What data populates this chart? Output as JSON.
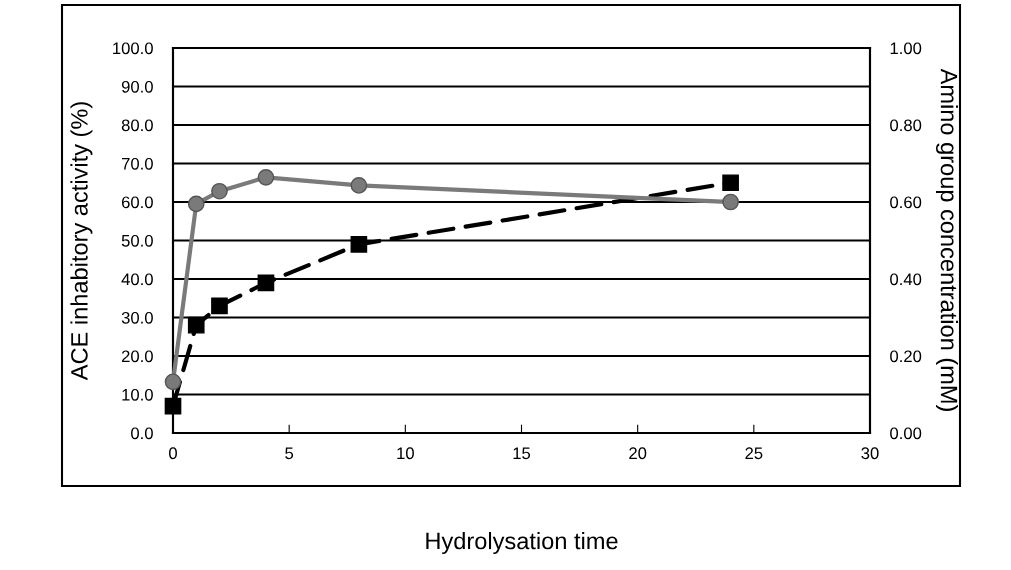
{
  "chart_data": {
    "type": "line",
    "xlabel": "Hydrolysation time",
    "ylabel": "ACE inhabitory activity (%)",
    "y2label": "Amino group concentration (mM)",
    "x": [
      0,
      1,
      2,
      4,
      8,
      24
    ],
    "series": [
      {
        "color": "#7a7a7a",
        "marker": "circle",
        "line_style": "solid",
        "values": [
          13.3,
          59.5,
          62.8,
          66.4,
          64.3,
          60.0
        ]
      },
      {
        "color": "#000000",
        "marker": "square",
        "line_style": "dashed",
        "axis": "y2",
        "values": [
          0.07,
          0.28,
          0.33,
          0.39,
          0.49,
          0.65
        ]
      }
    ],
    "xlim": [
      0,
      30
    ],
    "xticks": [
      0,
      5,
      10,
      15,
      20,
      25,
      30
    ],
    "ylim": [
      0,
      100
    ],
    "yticks": [
      {
        "value": 0,
        "label": "0.0"
      },
      {
        "value": 10,
        "label": "10.0"
      },
      {
        "value": 20,
        "label": "20.0"
      },
      {
        "value": 30,
        "label": "30.0"
      },
      {
        "value": 40,
        "label": "40.0"
      },
      {
        "value": 50,
        "label": "50.0"
      },
      {
        "value": 60,
        "label": "60.0"
      },
      {
        "value": 70,
        "label": "70.0"
      },
      {
        "value": 80,
        "label": "80.0"
      },
      {
        "value": 90,
        "label": "90.0"
      },
      {
        "value": 100,
        "label": "100.0"
      }
    ],
    "y2lim": [
      0,
      1
    ],
    "y2ticks": [
      {
        "value": 0,
        "label": "0.00"
      },
      {
        "value": 0.2,
        "label": "0.20"
      },
      {
        "value": 0.4,
        "label": "0.40"
      },
      {
        "value": 0.6,
        "label": "0.60"
      },
      {
        "value": 0.8,
        "label": "0.80"
      },
      {
        "value": 1,
        "label": "1.00"
      }
    ],
    "grid": "y"
  }
}
